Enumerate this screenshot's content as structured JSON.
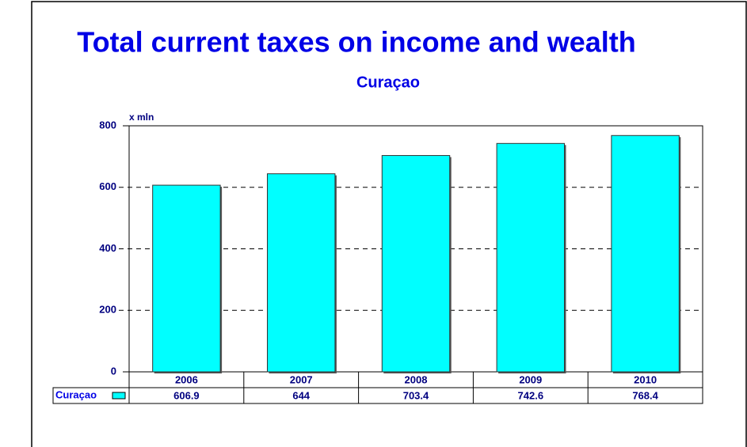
{
  "chart_data": {
    "type": "bar",
    "title": "Total current taxes on income and wealth",
    "subtitle": "Curaçao",
    "y_axis_label": "x mln",
    "categories": [
      "2006",
      "2007",
      "2008",
      "2009",
      "2010"
    ],
    "series": [
      {
        "name": "Curaçao",
        "color": "#00ffff",
        "values": [
          606.9,
          644,
          703.4,
          742.6,
          768.4
        ]
      }
    ],
    "ylim": [
      0,
      800
    ],
    "yticks": [
      0,
      200,
      400,
      600,
      800
    ],
    "grid": true
  }
}
